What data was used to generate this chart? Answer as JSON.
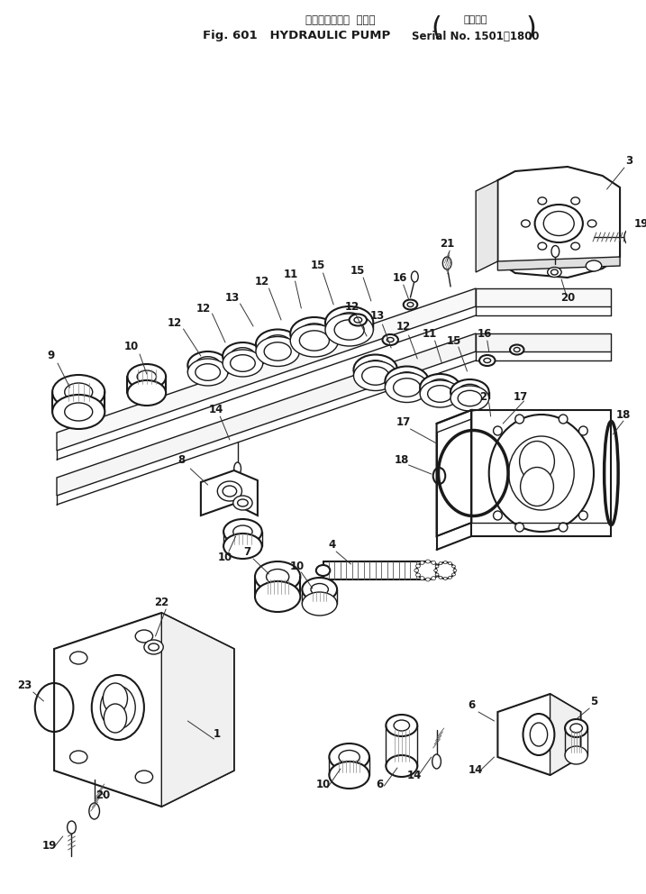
{
  "title_jp": "ハイドロリック  ポンプ",
  "title_en": "Fig. 601   HYDRAULIC PUMP",
  "serial_jp": "適用号機",
  "serial_en": "Serial No. 1501～1800",
  "bg_color": "#ffffff",
  "lc": "#1a1a1a",
  "figsize": [
    7.17,
    9.92
  ],
  "dpi": 100
}
